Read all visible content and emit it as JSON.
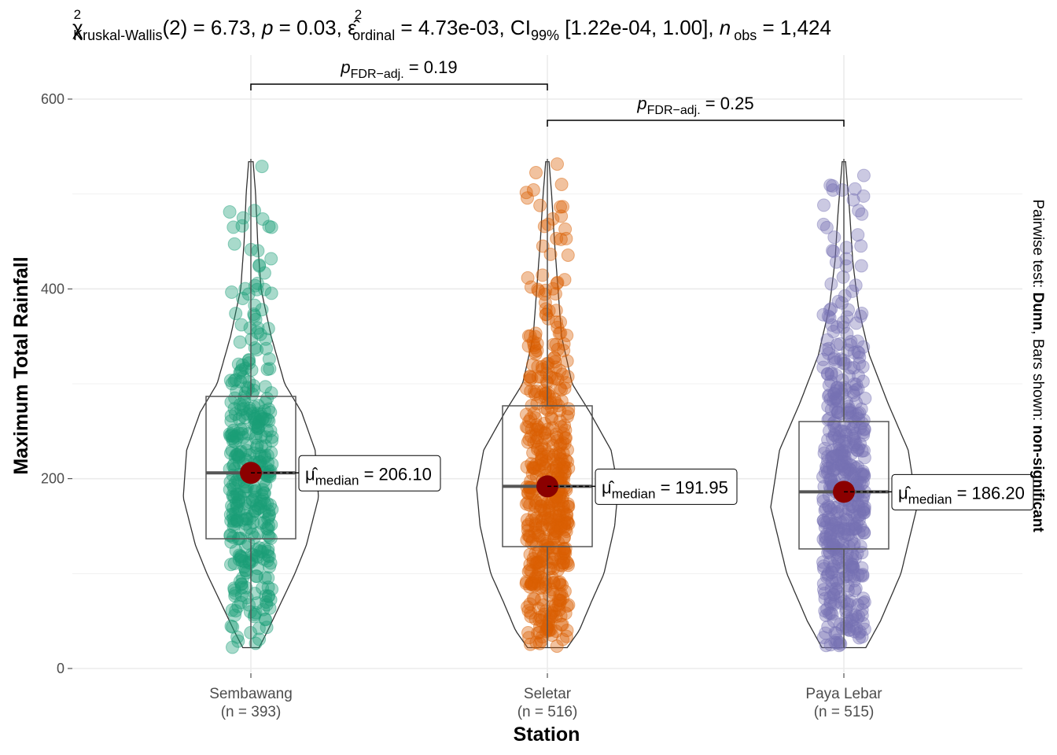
{
  "chart_data": {
    "type": "violin-box-scatter",
    "title": {
      "chi": "χ",
      "chi_sup": "2",
      "chi_sub": "Kruskal-Wallis",
      "chi_rest": "(2) = 6.73, ",
      "p": "p",
      "p_rest": " = 0.03, ",
      "eps": "ε̂",
      "eps_sup": "2",
      "eps_sub": "ordinal",
      "eps_rest": " = 4.73e-03, CI",
      "ci_sub": "99%",
      "ci_rest": " [1.22e-04, 1.00], ",
      "n": "n",
      "n_sub": "obs",
      "n_rest": " = 1,424"
    },
    "xlabel": "Station",
    "ylabel": "Maximum Total Rainfall",
    "caption": {
      "prefix": "Pairwise test: ",
      "test": "Dunn",
      "mid": ", Bars shown: ",
      "shown": "non-significant"
    },
    "ylim": [
      -30,
      640
    ],
    "yticks": [
      0,
      200,
      400,
      600
    ],
    "yticklabels": [
      "0",
      "200",
      "400",
      "600"
    ],
    "yminor": [
      100,
      300,
      500
    ],
    "groups": [
      {
        "name": "Sembawang",
        "n_label": "(n = 393)",
        "n": 393,
        "color": "#1B9E77",
        "q1": 136.7,
        "median": 206.1,
        "q3": 286.7,
        "min": 22,
        "max": 537,
        "median_label": {
          "mu": "μ̂",
          "sub": "median",
          "rest": " = 206.10"
        },
        "density": [
          [
            22,
            0.12
          ],
          [
            40,
            0.25
          ],
          [
            70,
            0.45
          ],
          [
            100,
            0.65
          ],
          [
            130,
            0.82
          ],
          [
            180,
            1
          ],
          [
            230,
            0.95
          ],
          [
            270,
            0.75
          ],
          [
            300,
            0.5
          ],
          [
            350,
            0.3
          ],
          [
            400,
            0.15
          ],
          [
            450,
            0.1
          ],
          [
            500,
            0.07
          ],
          [
            537,
            0.03
          ]
        ]
      },
      {
        "name": "Seletar",
        "n_label": "(n = 516)",
        "n": 516,
        "color": "#D95F02",
        "q1": 128.4,
        "median": 191.95,
        "q3": 276.8,
        "min": 22,
        "max": 537,
        "median_label": {
          "mu": "μ̂",
          "sub": "median",
          "rest": " = 191.95"
        },
        "density": [
          [
            22,
            0.28
          ],
          [
            40,
            0.45
          ],
          [
            70,
            0.62
          ],
          [
            100,
            0.8
          ],
          [
            150,
            0.95
          ],
          [
            190,
            1
          ],
          [
            230,
            0.9
          ],
          [
            270,
            0.6
          ],
          [
            300,
            0.35
          ],
          [
            350,
            0.2
          ],
          [
            400,
            0.15
          ],
          [
            450,
            0.1
          ],
          [
            500,
            0.06
          ],
          [
            537,
            0.02
          ]
        ]
      },
      {
        "name": "Paya Lebar",
        "n_label": "(n = 515)",
        "n": 515,
        "color": "#7570B3",
        "q1": 126.0,
        "median": 186.2,
        "q3": 260.2,
        "min": 22,
        "max": 537,
        "median_label": {
          "mu": "μ̂",
          "sub": "median",
          "rest": " = 186.20"
        },
        "density": [
          [
            22,
            0.3
          ],
          [
            50,
            0.5
          ],
          [
            100,
            0.78
          ],
          [
            170,
            1
          ],
          [
            230,
            0.88
          ],
          [
            280,
            0.6
          ],
          [
            330,
            0.35
          ],
          [
            380,
            0.2
          ],
          [
            430,
            0.12
          ],
          [
            480,
            0.08
          ],
          [
            537,
            0.02
          ]
        ]
      }
    ],
    "pairwise": [
      {
        "from": 0,
        "to": 1,
        "p_label": "p",
        "p_sub": "FDR−adj.",
        "p_rest": " = 0.19",
        "p_value": 0.19
      },
      {
        "from": 1,
        "to": 2,
        "p_label": "p",
        "p_sub": "FDR−adj.",
        "p_rest": " = 0.25",
        "p_value": 0.25
      }
    ]
  }
}
